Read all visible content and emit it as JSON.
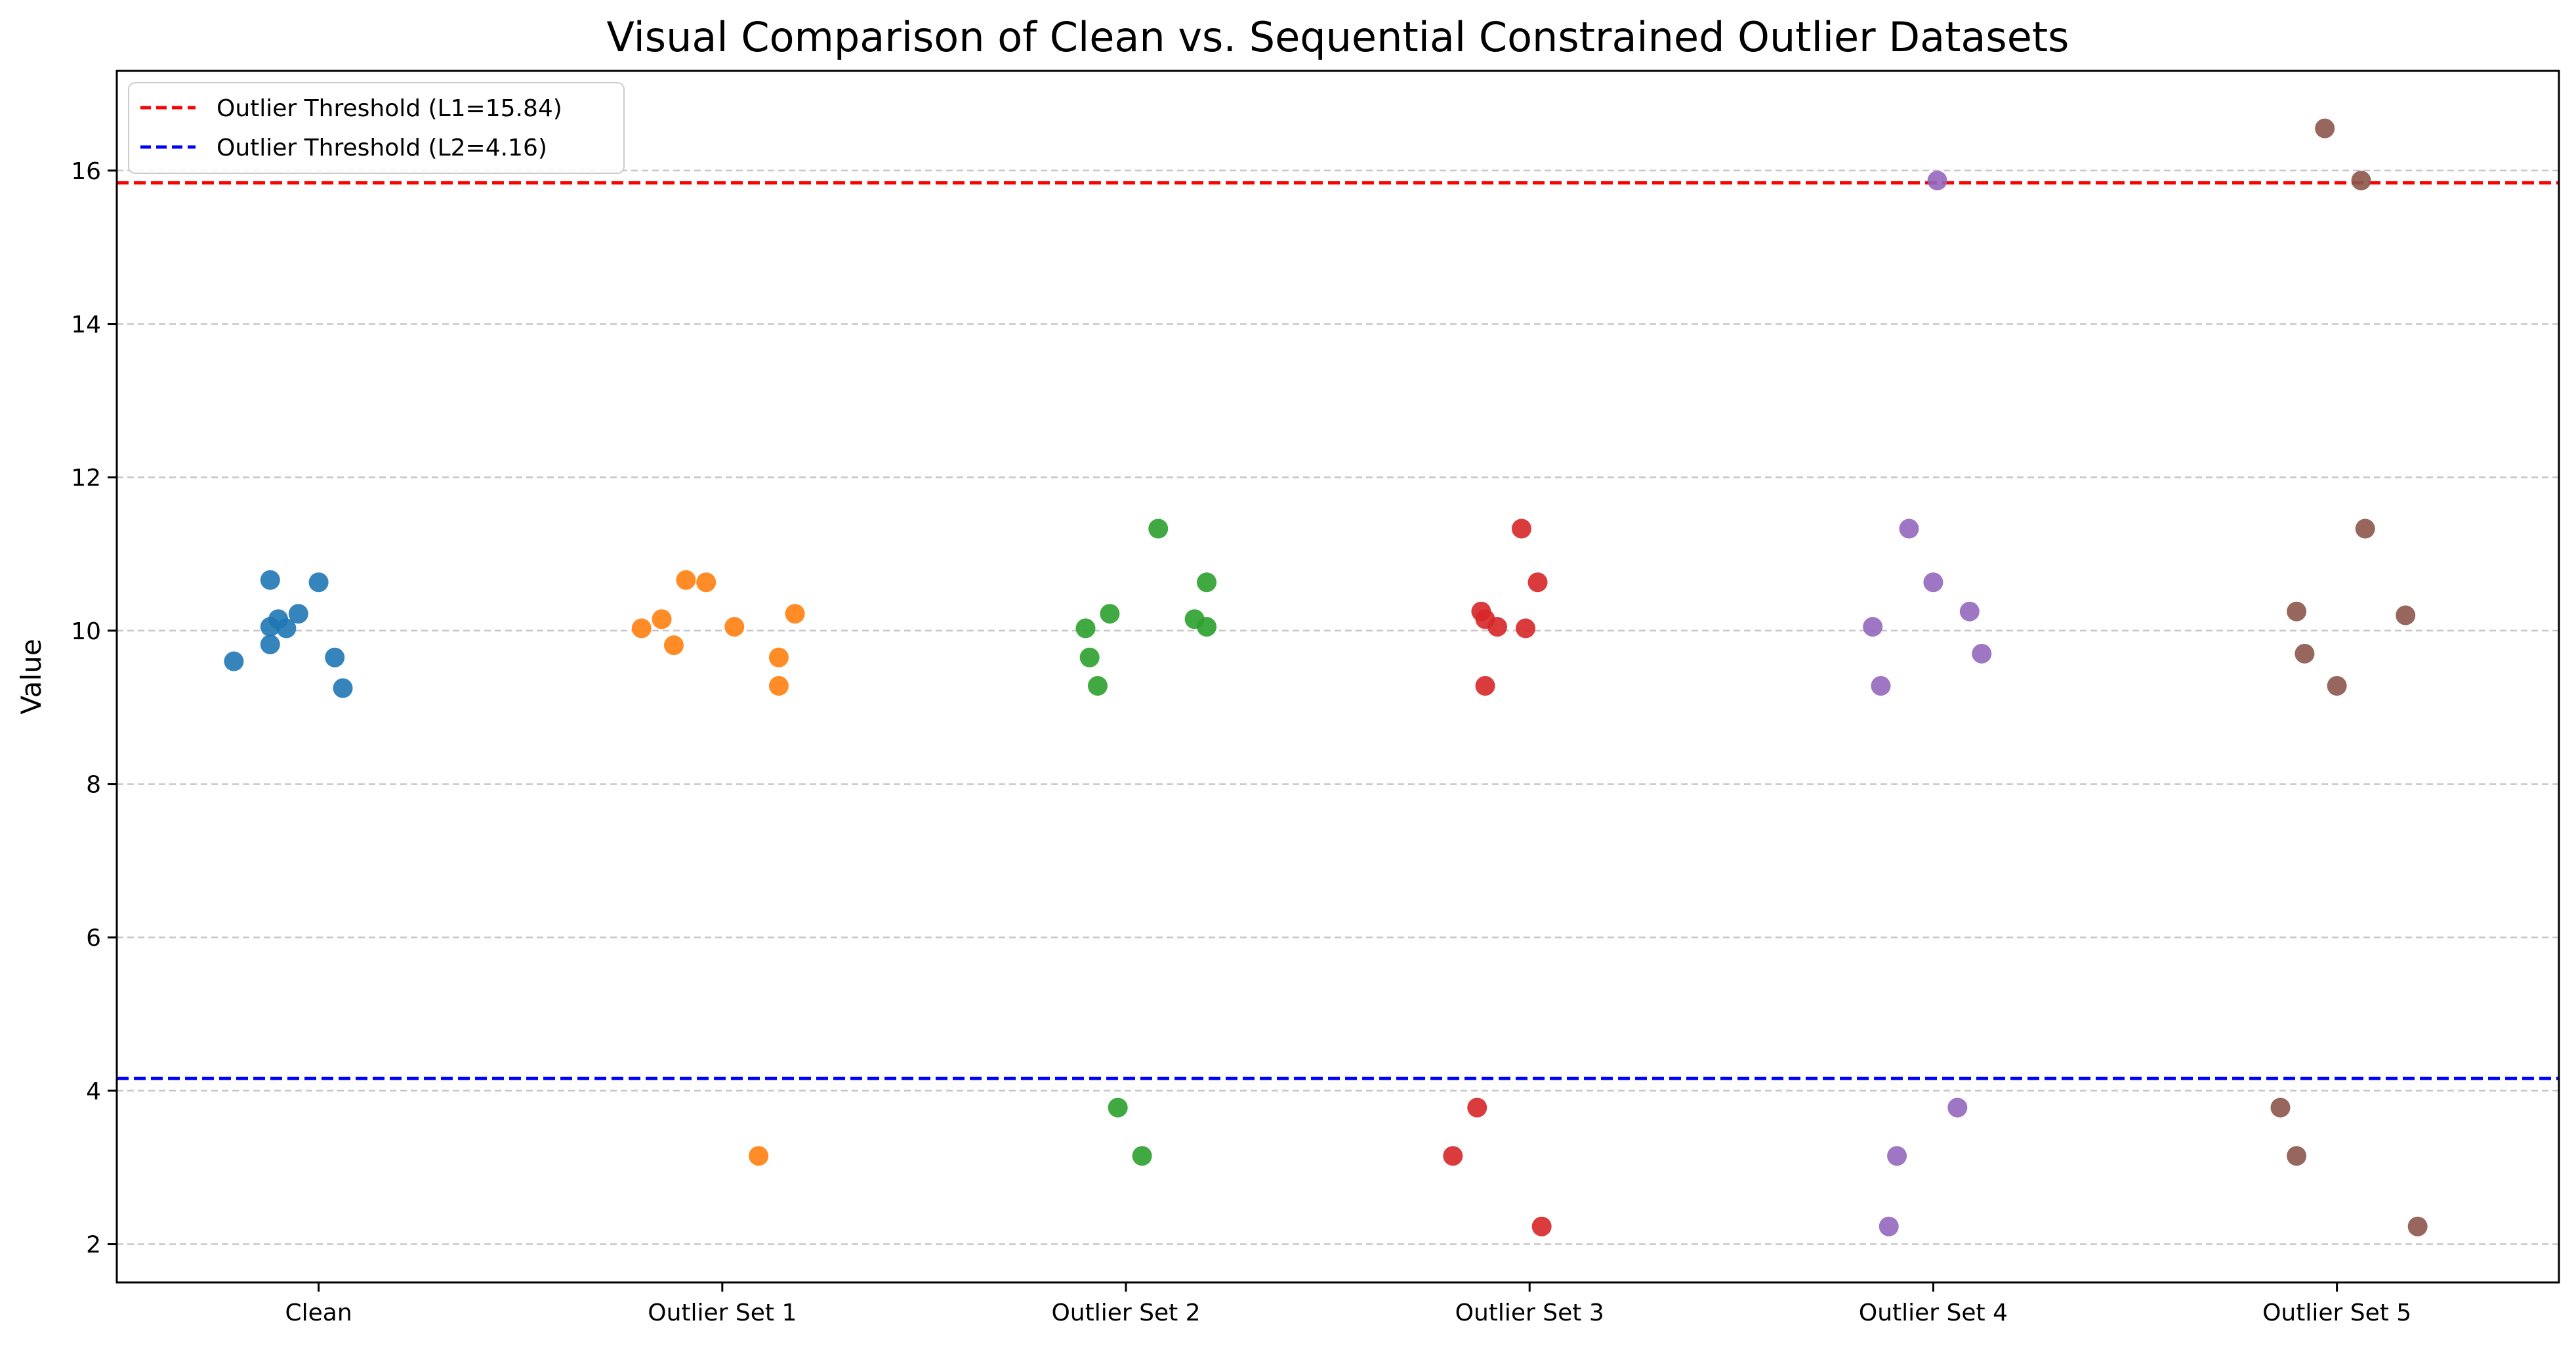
{
  "chart_data": {
    "type": "scatter",
    "title": "Visual Comparison of Clean vs. Sequential Constrained Outlier Datasets",
    "xlabel": "",
    "ylabel": "Value",
    "categories": [
      "Clean",
      "Outlier Set 1",
      "Outlier Set 2",
      "Outlier Set 3",
      "Outlier Set 4",
      "Outlier Set 5"
    ],
    "ylim": [
      1.5,
      17.3
    ],
    "yticks": [
      2,
      4,
      6,
      8,
      10,
      12,
      14,
      16
    ],
    "grid": "y-dashed",
    "legend_position": "top-left",
    "reference_lines": [
      {
        "label": "Outlier Threshold (L1=15.84)",
        "value": 15.84,
        "color": "#ff0000"
      },
      {
        "label": "Outlier Threshold (L2=4.16)",
        "value": 4.16,
        "color": "#0000ff"
      }
    ],
    "series": [
      {
        "category": "Clean",
        "color": "#1f77b4",
        "points": [
          [
            -0.21,
            9.6
          ],
          [
            -0.12,
            10.05
          ],
          [
            -0.1,
            10.15
          ],
          [
            -0.12,
            10.66
          ],
          [
            -0.12,
            9.82
          ],
          [
            -0.08,
            10.03
          ],
          [
            -0.05,
            10.22
          ],
          [
            0.0,
            10.63
          ],
          [
            0.04,
            9.65
          ],
          [
            0.06,
            9.25
          ]
        ]
      },
      {
        "category": "Outlier Set 1",
        "color": "#ff7f0e",
        "points": [
          [
            -0.2,
            10.03
          ],
          [
            -0.15,
            10.15
          ],
          [
            -0.12,
            9.81
          ],
          [
            -0.09,
            10.66
          ],
          [
            -0.04,
            10.63
          ],
          [
            0.03,
            10.05
          ],
          [
            0.09,
            3.15
          ],
          [
            0.14,
            9.65
          ],
          [
            0.14,
            9.28
          ],
          [
            0.18,
            10.22
          ]
        ]
      },
      {
        "category": "Outlier Set 2",
        "color": "#2ca02c",
        "points": [
          [
            -0.1,
            10.03
          ],
          [
            -0.09,
            9.65
          ],
          [
            -0.07,
            9.28
          ],
          [
            -0.04,
            10.22
          ],
          [
            -0.02,
            3.78
          ],
          [
            0.04,
            3.15
          ],
          [
            0.08,
            11.33
          ],
          [
            0.17,
            10.15
          ],
          [
            0.2,
            10.63
          ],
          [
            0.2,
            10.05
          ]
        ]
      },
      {
        "category": "Outlier Set 3",
        "color": "#d62728",
        "points": [
          [
            -0.19,
            3.15
          ],
          [
            -0.13,
            3.78
          ],
          [
            -0.12,
            10.25
          ],
          [
            -0.11,
            10.15
          ],
          [
            -0.11,
            9.28
          ],
          [
            -0.08,
            10.05
          ],
          [
            -0.02,
            11.33
          ],
          [
            -0.01,
            10.03
          ],
          [
            0.02,
            10.63
          ],
          [
            0.03,
            2.23
          ]
        ]
      },
      {
        "category": "Outlier Set 4",
        "color": "#9467bd",
        "points": [
          [
            -0.15,
            10.05
          ],
          [
            -0.13,
            9.28
          ],
          [
            -0.11,
            2.23
          ],
          [
            -0.09,
            3.15
          ],
          [
            -0.06,
            11.33
          ],
          [
            0.0,
            10.63
          ],
          [
            0.01,
            15.87
          ],
          [
            0.06,
            3.78
          ],
          [
            0.09,
            10.25
          ],
          [
            0.12,
            9.7
          ]
        ]
      },
      {
        "category": "Outlier Set 5",
        "color": "#8c564b",
        "points": [
          [
            -0.14,
            3.78
          ],
          [
            -0.1,
            10.25
          ],
          [
            -0.1,
            3.15
          ],
          [
            -0.08,
            9.7
          ],
          [
            -0.03,
            16.55
          ],
          [
            0.0,
            9.28
          ],
          [
            0.06,
            15.87
          ],
          [
            0.07,
            11.33
          ],
          [
            0.17,
            10.2
          ],
          [
            0.2,
            2.23
          ]
        ]
      }
    ]
  }
}
